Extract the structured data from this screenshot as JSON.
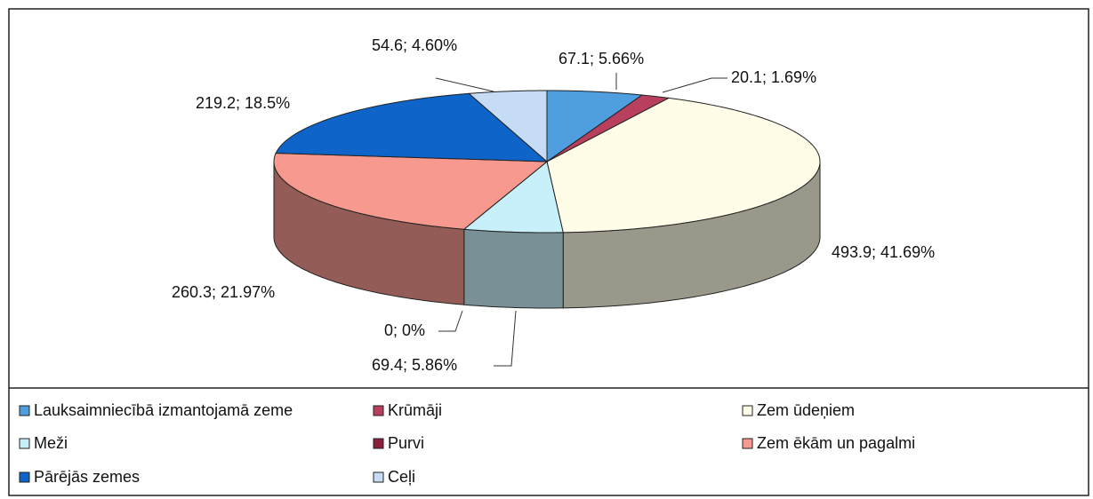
{
  "chart_data": {
    "type": "pie3d",
    "categories": [
      "Lauksaimniecībā izmantojamā zeme",
      "Krūmāji",
      "Zem ūdeņiem",
      "Meži",
      "Purvi",
      "Zem ēkām un pagalmi",
      "Pārējās zemes",
      "Ceļi"
    ],
    "values": [
      67.1,
      20.1,
      493.9,
      69.4,
      0,
      260.3,
      219.2,
      54.6
    ],
    "value_labels": [
      "67.1; 5.66%",
      "20.1; 1.69%",
      "493.9; 41.69%",
      "69.4; 5.86%",
      "0; 0%",
      "260.3; 21.97%",
      "219.2; 18.5%",
      "54.6; 4.60%"
    ],
    "colors": [
      "#4f9ee0",
      "#b8405e",
      "#fffde8",
      "#c8f0fa",
      "#8b1f3a",
      "#f7998f",
      "#0e64c8",
      "#c6dcf5"
    ],
    "legend": "bottom"
  }
}
